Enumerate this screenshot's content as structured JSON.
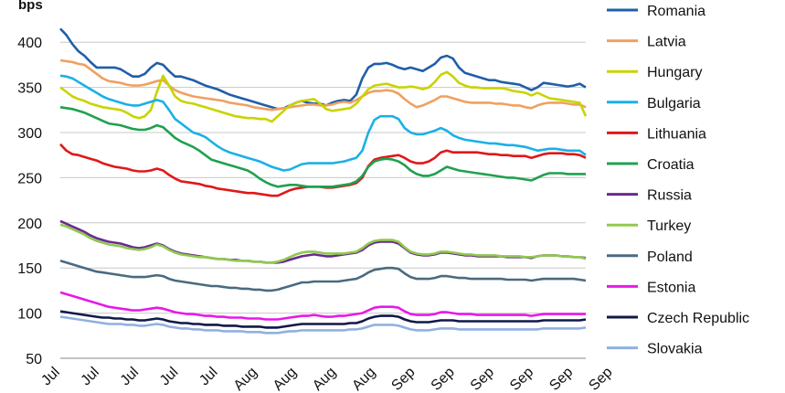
{
  "chart_data": {
    "type": "line",
    "ylabel": "bps",
    "ylim": [
      50,
      420
    ],
    "yticks": [
      50,
      100,
      150,
      200,
      250,
      300,
      350,
      400
    ],
    "grid": true,
    "legend_position": "right",
    "x_tick_labels": [
      "Jul",
      "Jul",
      "Jul",
      "Jul",
      "Jul",
      "Aug",
      "Aug",
      "Aug",
      "Aug",
      "Sep",
      "Sep",
      "Sep",
      "Sep",
      "Sep",
      "Sep"
    ],
    "series": [
      {
        "name": "Romania",
        "color": "#1f5fa8",
        "values": [
          415,
          408,
          398,
          390,
          385,
          378,
          372,
          372,
          372,
          372,
          370,
          366,
          362,
          362,
          365,
          372,
          377,
          375,
          368,
          362,
          362,
          360,
          358,
          355,
          352,
          350,
          348,
          345,
          342,
          340,
          338,
          336,
          334,
          332,
          330,
          328,
          326,
          327,
          330,
          333,
          335,
          333,
          332,
          332,
          330,
          333,
          335,
          336,
          335,
          342,
          360,
          372,
          376,
          376,
          377,
          375,
          372,
          370,
          372,
          370,
          368,
          372,
          376,
          383,
          385,
          382,
          372,
          366,
          364,
          362,
          360,
          358,
          358,
          356,
          355,
          354,
          353,
          350,
          347,
          350,
          355,
          354,
          353,
          352,
          351,
          352,
          354,
          350
        ]
      },
      {
        "name": "Latvia",
        "color": "#f0a060",
        "values": [
          380,
          379,
          378,
          376,
          375,
          370,
          365,
          360,
          357,
          356,
          355,
          353,
          352,
          352,
          353,
          355,
          357,
          358,
          352,
          347,
          344,
          342,
          340,
          339,
          338,
          337,
          336,
          335,
          333,
          332,
          331,
          330,
          328,
          327,
          326,
          325,
          326,
          327,
          328,
          329,
          330,
          331,
          331,
          330,
          330,
          331,
          333,
          334,
          333,
          336,
          340,
          344,
          346,
          346,
          347,
          346,
          343,
          337,
          332,
          328,
          330,
          333,
          336,
          340,
          340,
          338,
          336,
          334,
          333,
          333,
          333,
          333,
          332,
          332,
          331,
          330,
          330,
          328,
          327,
          330,
          332,
          333,
          333,
          333,
          332,
          331,
          331,
          328
        ]
      },
      {
        "name": "Hungary",
        "color": "#c8d400",
        "values": [
          350,
          345,
          340,
          337,
          335,
          332,
          330,
          328,
          327,
          326,
          325,
          322,
          318,
          316,
          318,
          325,
          345,
          363,
          352,
          340,
          335,
          333,
          332,
          330,
          328,
          326,
          324,
          322,
          320,
          318,
          317,
          316,
          316,
          315,
          315,
          312,
          318,
          324,
          330,
          333,
          335,
          336,
          337,
          332,
          326,
          324,
          325,
          326,
          327,
          332,
          340,
          348,
          352,
          353,
          354,
          352,
          350,
          350,
          351,
          350,
          348,
          350,
          356,
          364,
          367,
          362,
          355,
          352,
          350,
          350,
          349,
          349,
          349,
          349,
          348,
          346,
          345,
          344,
          341,
          344,
          341,
          338,
          337,
          336,
          335,
          334,
          333,
          318
        ]
      },
      {
        "name": "Bulgaria",
        "color": "#1ab0e8",
        "values": [
          363,
          362,
          360,
          356,
          352,
          348,
          344,
          340,
          337,
          335,
          333,
          331,
          330,
          330,
          332,
          334,
          336,
          334,
          325,
          315,
          310,
          305,
          300,
          298,
          295,
          290,
          285,
          281,
          278,
          276,
          274,
          272,
          270,
          268,
          265,
          262,
          260,
          258,
          259,
          262,
          265,
          266,
          266,
          266,
          266,
          266,
          267,
          268,
          270,
          272,
          280,
          300,
          314,
          318,
          318,
          318,
          315,
          305,
          300,
          298,
          298,
          300,
          302,
          305,
          302,
          297,
          294,
          292,
          291,
          290,
          289,
          288,
          288,
          287,
          286,
          286,
          285,
          284,
          282,
          280,
          281,
          282,
          282,
          281,
          280,
          280,
          280,
          275
        ]
      },
      {
        "name": "Lithuania",
        "color": "#e01818",
        "values": [
          287,
          280,
          276,
          275,
          273,
          271,
          269,
          266,
          264,
          262,
          261,
          260,
          258,
          257,
          257,
          258,
          260,
          258,
          253,
          249,
          246,
          245,
          244,
          243,
          241,
          240,
          238,
          237,
          236,
          235,
          234,
          233,
          233,
          232,
          231,
          230,
          230,
          233,
          236,
          238,
          239,
          240,
          240,
          240,
          239,
          239,
          240,
          241,
          242,
          244,
          250,
          263,
          270,
          272,
          273,
          274,
          275,
          272,
          268,
          266,
          266,
          268,
          272,
          278,
          280,
          278,
          278,
          278,
          278,
          278,
          277,
          276,
          276,
          275,
          275,
          274,
          274,
          274,
          272,
          274,
          276,
          277,
          277,
          277,
          276,
          276,
          275,
          272
        ]
      },
      {
        "name": "Croatia",
        "color": "#20a050",
        "values": [
          328,
          327,
          326,
          324,
          322,
          319,
          316,
          313,
          310,
          309,
          308,
          306,
          304,
          303,
          303,
          305,
          308,
          306,
          300,
          294,
          290,
          287,
          284,
          280,
          275,
          270,
          268,
          266,
          264,
          262,
          260,
          258,
          254,
          249,
          245,
          242,
          240,
          241,
          242,
          242,
          241,
          240,
          240,
          240,
          240,
          240,
          241,
          242,
          243,
          246,
          252,
          262,
          268,
          270,
          271,
          270,
          268,
          264,
          258,
          254,
          252,
          252,
          254,
          258,
          262,
          260,
          258,
          257,
          256,
          255,
          254,
          253,
          252,
          251,
          250,
          250,
          249,
          248,
          247,
          250,
          253,
          255,
          255,
          255,
          254,
          254,
          254,
          254
        ]
      },
      {
        "name": "Russia",
        "color": "#6a2a90",
        "values": [
          202,
          199,
          196,
          193,
          190,
          186,
          183,
          181,
          179,
          178,
          177,
          175,
          173,
          172,
          173,
          175,
          177,
          175,
          171,
          168,
          166,
          165,
          164,
          163,
          162,
          161,
          160,
          160,
          159,
          159,
          158,
          158,
          157,
          157,
          156,
          156,
          156,
          157,
          159,
          161,
          163,
          164,
          165,
          164,
          163,
          163,
          164,
          165,
          166,
          167,
          170,
          175,
          178,
          179,
          179,
          179,
          177,
          172,
          167,
          165,
          164,
          164,
          165,
          167,
          167,
          166,
          165,
          164,
          164,
          163,
          163,
          163,
          163,
          163,
          162,
          162,
          162,
          162,
          161,
          163,
          164,
          164,
          164,
          163,
          163,
          162,
          162,
          161
        ]
      },
      {
        "name": "Turkey",
        "color": "#90c850",
        "values": [
          198,
          196,
          193,
          190,
          187,
          183,
          180,
          178,
          176,
          175,
          174,
          172,
          171,
          170,
          171,
          173,
          176,
          174,
          170,
          167,
          165,
          164,
          163,
          162,
          162,
          161,
          160,
          160,
          159,
          158,
          158,
          158,
          157,
          157,
          156,
          156,
          157,
          159,
          162,
          165,
          167,
          168,
          168,
          167,
          166,
          166,
          166,
          166,
          167,
          168,
          172,
          177,
          180,
          181,
          181,
          181,
          179,
          173,
          168,
          166,
          165,
          165,
          166,
          168,
          168,
          167,
          166,
          165,
          165,
          164,
          164,
          164,
          164,
          163,
          163,
          163,
          163,
          162,
          162,
          163,
          164,
          164,
          164,
          163,
          163,
          162,
          162,
          160
        ]
      },
      {
        "name": "Poland",
        "color": "#4a6a80",
        "values": [
          158,
          156,
          154,
          152,
          150,
          148,
          146,
          145,
          144,
          143,
          142,
          141,
          140,
          140,
          140,
          141,
          142,
          141,
          138,
          136,
          135,
          134,
          133,
          132,
          131,
          130,
          130,
          129,
          128,
          128,
          127,
          127,
          126,
          126,
          125,
          125,
          126,
          128,
          130,
          132,
          134,
          134,
          135,
          135,
          135,
          135,
          135,
          136,
          137,
          138,
          141,
          145,
          148,
          149,
          150,
          150,
          149,
          144,
          140,
          138,
          138,
          138,
          139,
          141,
          141,
          140,
          139,
          139,
          138,
          138,
          138,
          138,
          138,
          138,
          137,
          137,
          137,
          137,
          136,
          137,
          138,
          138,
          138,
          138,
          138,
          138,
          137,
          136
        ]
      },
      {
        "name": "Estonia",
        "color": "#e818e8",
        "values": [
          123,
          121,
          119,
          117,
          115,
          113,
          111,
          109,
          107,
          106,
          105,
          104,
          103,
          103,
          104,
          105,
          106,
          105,
          103,
          101,
          100,
          99,
          99,
          98,
          97,
          97,
          96,
          96,
          95,
          95,
          95,
          94,
          94,
          94,
          93,
          93,
          93,
          94,
          95,
          96,
          97,
          97,
          98,
          97,
          96,
          96,
          97,
          97,
          98,
          99,
          100,
          103,
          106,
          107,
          107,
          107,
          106,
          102,
          99,
          98,
          98,
          98,
          99,
          101,
          101,
          100,
          99,
          99,
          99,
          98,
          98,
          98,
          98,
          98,
          98,
          98,
          98,
          98,
          97,
          98,
          99,
          99,
          99,
          99,
          99,
          99,
          99,
          99
        ]
      },
      {
        "name": "Czech Republic",
        "color": "#101848",
        "values": [
          102,
          101,
          100,
          99,
          98,
          97,
          96,
          95,
          95,
          94,
          94,
          93,
          93,
          92,
          92,
          93,
          94,
          93,
          91,
          90,
          89,
          89,
          88,
          88,
          87,
          87,
          87,
          86,
          86,
          86,
          85,
          85,
          85,
          85,
          84,
          84,
          84,
          85,
          86,
          87,
          88,
          88,
          88,
          88,
          88,
          88,
          88,
          88,
          89,
          89,
          91,
          94,
          96,
          97,
          97,
          97,
          96,
          93,
          91,
          90,
          90,
          90,
          91,
          92,
          92,
          92,
          91,
          91,
          91,
          91,
          91,
          91,
          91,
          91,
          91,
          91,
          91,
          91,
          91,
          91,
          92,
          92,
          92,
          92,
          92,
          92,
          92,
          93
        ]
      },
      {
        "name": "Slovakia",
        "color": "#90b0e0",
        "values": [
          96,
          95,
          94,
          93,
          92,
          91,
          90,
          89,
          88,
          88,
          88,
          87,
          87,
          86,
          86,
          87,
          88,
          87,
          85,
          84,
          83,
          83,
          82,
          82,
          81,
          81,
          81,
          80,
          80,
          80,
          80,
          79,
          79,
          79,
          78,
          78,
          78,
          79,
          80,
          80,
          81,
          81,
          81,
          81,
          81,
          81,
          81,
          81,
          82,
          82,
          83,
          85,
          87,
          87,
          87,
          87,
          86,
          84,
          82,
          81,
          81,
          81,
          82,
          83,
          83,
          83,
          82,
          82,
          82,
          82,
          82,
          82,
          82,
          82,
          82,
          82,
          82,
          82,
          82,
          82,
          83,
          83,
          83,
          83,
          83,
          83,
          83,
          84
        ]
      }
    ]
  }
}
